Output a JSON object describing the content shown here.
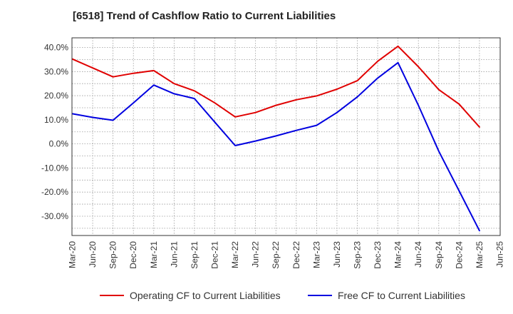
{
  "chart_data": {
    "type": "line",
    "title": "[6518]  Trend of Cashflow Ratio to Current Liabilities",
    "xlabel": "",
    "ylabel": "",
    "ylim": [
      -38,
      44
    ],
    "yticks": [
      40,
      30,
      20,
      10,
      0,
      -10,
      -20,
      -30
    ],
    "ytick_labels": [
      "40.0%",
      "30.0%",
      "20.0%",
      "10.0%",
      "0.0%",
      "-10.0%",
      "-20.0%",
      "-30.0%"
    ],
    "categories": [
      "Mar-20",
      "Jun-20",
      "Sep-20",
      "Dec-20",
      "Mar-21",
      "Jun-21",
      "Sep-21",
      "Dec-21",
      "Mar-22",
      "Jun-22",
      "Sep-22",
      "Dec-22",
      "Mar-23",
      "Jun-23",
      "Sep-23",
      "Dec-23",
      "Mar-24",
      "Jun-24",
      "Sep-24",
      "Dec-24",
      "Mar-25",
      "Jun-25"
    ],
    "grid": true,
    "legend_position": "bottom",
    "series": [
      {
        "name": "Operating CF to Current Liabilities",
        "color": "#e00000",
        "values": [
          35.2,
          31.5,
          27.8,
          29.3,
          30.4,
          25.0,
          22.0,
          17.0,
          11.2,
          13.0,
          16.0,
          18.3,
          19.9,
          22.7,
          26.2,
          34.3,
          40.5,
          32.0,
          22.5,
          16.5,
          7.0,
          null
        ]
      },
      {
        "name": "Free CF to Current Liabilities",
        "color": "#0000e0",
        "values": [
          12.5,
          11.0,
          9.8,
          17.0,
          24.4,
          20.8,
          18.8,
          9.0,
          -0.7,
          1.2,
          3.3,
          5.6,
          7.7,
          13.0,
          19.5,
          27.3,
          33.7,
          16.0,
          -3.0,
          -19.5,
          -36.0,
          null
        ]
      }
    ]
  }
}
